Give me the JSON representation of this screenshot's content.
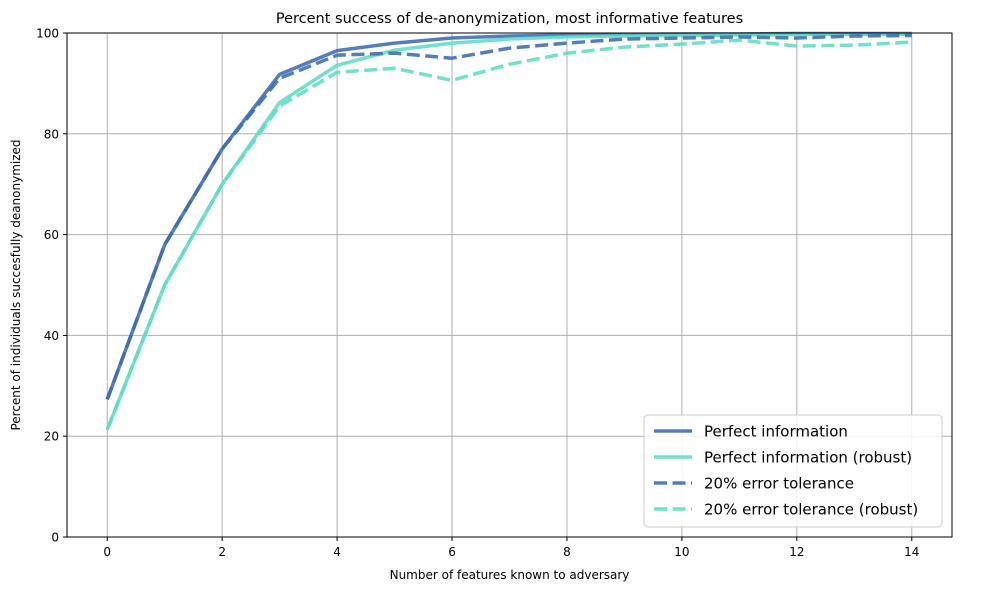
{
  "chart_data": {
    "type": "line",
    "title": "Percent success of de-anonymization, most informative features",
    "xlabel": "Number of features known to adversary",
    "ylabel": "Percent of individuals succesfully deanonymized",
    "xlim": [
      -0.7,
      14.7
    ],
    "ylim": [
      0,
      100
    ],
    "xticks": [
      0,
      2,
      4,
      6,
      8,
      10,
      12,
      14
    ],
    "yticks": [
      0,
      20,
      40,
      60,
      80,
      100
    ],
    "grid": true,
    "legend_position": "bottom-right",
    "x": [
      0,
      1,
      2,
      3,
      4,
      5,
      6,
      7,
      8,
      9,
      10,
      11,
      12,
      13,
      14
    ],
    "series": [
      {
        "name": "Perfect information",
        "color": "#3d6bb3",
        "dash": "solid",
        "values": [
          27.3,
          58.0,
          77.0,
          91.8,
          96.5,
          98.0,
          99.0,
          99.4,
          99.6,
          99.7,
          99.8,
          99.8,
          99.9,
          99.9,
          99.9
        ]
      },
      {
        "name": "Perfect information (robust)",
        "color": "#5dddc2",
        "dash": "solid",
        "values": [
          21.3,
          50.0,
          70.0,
          86.2,
          93.6,
          96.6,
          98.0,
          98.8,
          99.2,
          99.4,
          99.5,
          99.6,
          99.7,
          99.7,
          99.8
        ]
      },
      {
        "name": "20% error tolerance",
        "color": "#3d6bb3",
        "dash": "dashed",
        "values": [
          27.3,
          58.0,
          77.0,
          91.0,
          95.6,
          96.0,
          95.0,
          97.0,
          98.0,
          98.8,
          99.0,
          99.2,
          99.0,
          99.4,
          99.5
        ]
      },
      {
        "name": "20% error tolerance (robust)",
        "color": "#5dddc2",
        "dash": "dashed",
        "values": [
          21.3,
          50.0,
          70.0,
          85.5,
          92.2,
          93.0,
          90.6,
          93.8,
          96.0,
          97.2,
          97.8,
          98.6,
          97.4,
          97.6,
          98.2
        ]
      }
    ]
  }
}
